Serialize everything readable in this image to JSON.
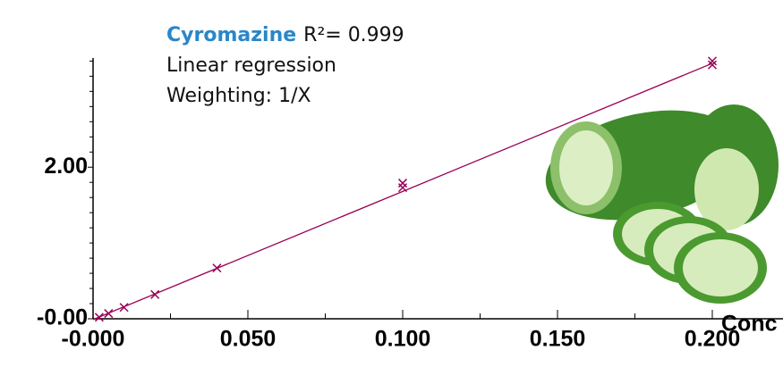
{
  "chart_data": {
    "type": "scatter",
    "compound": "Cyromazine",
    "r_squared": "R²= 0.999",
    "regression_text": "Linear regression",
    "weighting": "Weighting: 1/X",
    "x_label": "Conc",
    "color": "#990055",
    "series": [
      {
        "x": [
          0.002,
          0.005,
          0.01,
          0.02,
          0.04,
          0.1,
          0.1,
          0.2,
          0.2
        ],
        "values": [
          0.02,
          0.07,
          0.15,
          0.32,
          0.67,
          1.79,
          1.73,
          3.4,
          3.35
        ]
      }
    ],
    "fit": {
      "x": [
        0,
        0.2
      ],
      "values": [
        -0.01,
        3.37
      ]
    },
    "xlim": [
      0,
      0.2
    ],
    "ylim": [
      0,
      3.44
    ],
    "xticks": [
      {
        "value": 0,
        "label": "-0.000"
      },
      {
        "value": 0.05,
        "label": "0.050"
      },
      {
        "value": 0.1,
        "label": "0.100"
      },
      {
        "value": 0.15,
        "label": "0.150"
      },
      {
        "value": 0.2,
        "label": "0.200"
      }
    ],
    "xticks_minor": [
      0.025,
      0.075,
      0.125,
      0.175
    ],
    "yticks": [
      {
        "value": 0,
        "label": "-0.00"
      },
      {
        "value": 2,
        "label": "2.00"
      }
    ],
    "yticks_minor": [
      0.2,
      0.4,
      0.6,
      0.8,
      1,
      1.2,
      1.4,
      1.6,
      1.8,
      2.2,
      2.4,
      2.6,
      2.8,
      3,
      3.2,
      3.4
    ]
  }
}
